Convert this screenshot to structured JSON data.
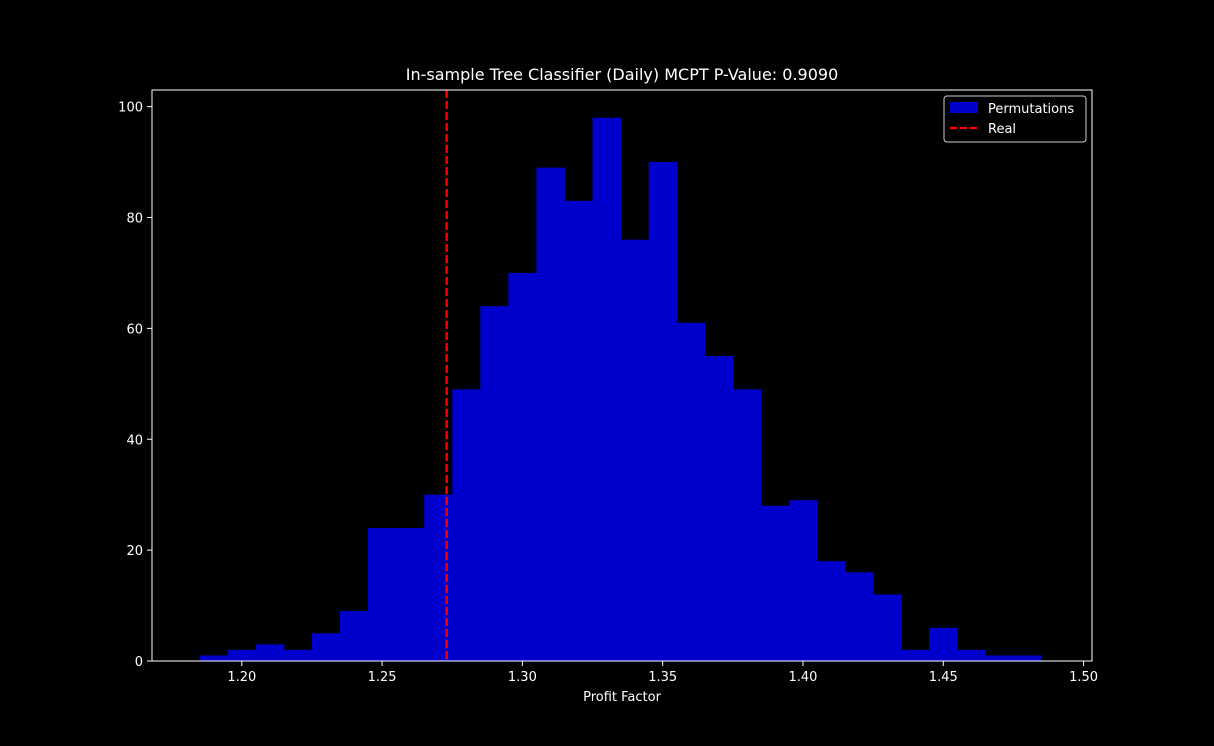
{
  "chart_data": {
    "type": "bar",
    "title": "In-sample Tree Classifier (Daily) MCPT P-Value: 0.9090",
    "xlabel": "Profit Factor",
    "ylabel": "",
    "xlim": [
      1.168,
      1.503
    ],
    "ylim": [
      0,
      103
    ],
    "grid": false,
    "legend_position": "top-right",
    "colors": {
      "background": "#000000",
      "axes": "#ffffff",
      "bars": "#0000cc",
      "real_line": "#ff0000"
    },
    "x_ticks": [
      1.2,
      1.25,
      1.3,
      1.35,
      1.4,
      1.45,
      1.5
    ],
    "x_tick_labels": [
      "1.20",
      "1.25",
      "1.30",
      "1.35",
      "1.40",
      "1.45",
      "1.50"
    ],
    "y_ticks": [
      0,
      20,
      40,
      60,
      80,
      100
    ],
    "y_tick_labels": [
      "0",
      "20",
      "40",
      "60",
      "80",
      "100"
    ],
    "bin_edges": [
      1.185,
      1.195,
      1.205,
      1.215,
      1.225,
      1.235,
      1.245,
      1.255,
      1.265,
      1.275,
      1.285,
      1.295,
      1.305,
      1.315,
      1.325,
      1.335,
      1.345,
      1.355,
      1.365,
      1.375,
      1.385,
      1.395,
      1.405,
      1.415,
      1.425,
      1.435,
      1.445,
      1.455,
      1.465,
      1.475,
      1.485
    ],
    "series": [
      {
        "name": "Permutations",
        "values": [
          1,
          2,
          3,
          2,
          5,
          9,
          24,
          24,
          30,
          49,
          64,
          70,
          89,
          83,
          98,
          76,
          90,
          61,
          55,
          49,
          28,
          29,
          18,
          16,
          12,
          2,
          6,
          2,
          1,
          1
        ]
      }
    ],
    "real_value": 1.273,
    "legend": [
      {
        "label": "Permutations",
        "style": "patch"
      },
      {
        "label": "Real",
        "style": "dashed-line"
      }
    ]
  }
}
